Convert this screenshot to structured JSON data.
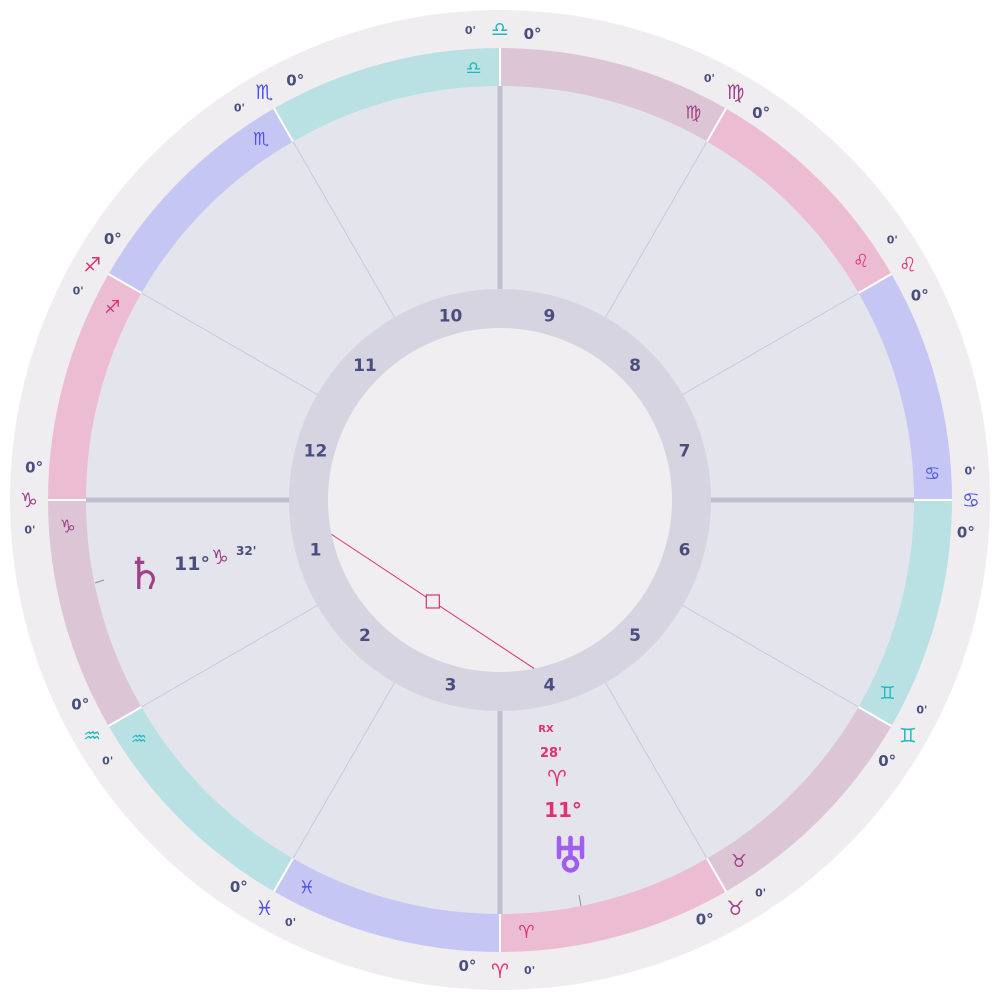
{
  "colors": {
    "outer_ring": "#efedf0",
    "house_bg": "#e4e4ec",
    "inner_ring": "#d5d4e0",
    "center": "#f0eef1",
    "divider": "#c9c8d6",
    "angle_line": "#c0bfcf",
    "text": "#4a4e7e",
    "fire_band": "#ecbdd2",
    "earth_band": "#dcc6d6",
    "air_band": "#b9e1e3",
    "water_band": "#c5c6f3",
    "fire_glyph": "#e0306e",
    "earth_glyph": "#a0408a",
    "air_glyph": "#20b8c0",
    "water_glyph": "#4f52e8",
    "aspect_square": "#e0306e",
    "uranus": "#a15cf0",
    "saturn": "#a0408a"
  },
  "zodiac_band": [
    {
      "sign": "Aries",
      "glyph": "♈",
      "element": "fire"
    },
    {
      "sign": "Taurus",
      "glyph": "♉",
      "element": "earth"
    },
    {
      "sign": "Gemini",
      "glyph": "♊",
      "element": "air"
    },
    {
      "sign": "Cancer",
      "glyph": "♋",
      "element": "water"
    },
    {
      "sign": "Leo",
      "glyph": "♌",
      "element": "fire"
    },
    {
      "sign": "Virgo",
      "glyph": "♍",
      "element": "earth"
    },
    {
      "sign": "Libra",
      "glyph": "♎",
      "element": "air"
    },
    {
      "sign": "Scorpio",
      "glyph": "♏",
      "element": "water"
    },
    {
      "sign": "Sagittarius",
      "glyph": "♐",
      "element": "fire"
    },
    {
      "sign": "Capricorn",
      "glyph": "♑",
      "element": "earth"
    },
    {
      "sign": "Aquarius",
      "glyph": "♒",
      "element": "air"
    },
    {
      "sign": "Pisces",
      "glyph": "♓",
      "element": "water"
    }
  ],
  "cusps": [
    {
      "deg": "0°",
      "glyph": "♈",
      "min": "0'",
      "element": "fire"
    },
    {
      "deg": "0°",
      "glyph": "♉",
      "min": "0'",
      "element": "earth"
    },
    {
      "deg": "0°",
      "glyph": "♊",
      "min": "0'",
      "element": "air"
    },
    {
      "deg": "0°",
      "glyph": "♋",
      "min": "0'",
      "element": "water"
    },
    {
      "deg": "0°",
      "glyph": "♌",
      "min": "0'",
      "element": "fire"
    },
    {
      "deg": "0°",
      "glyph": "♍",
      "min": "0'",
      "element": "earth"
    },
    {
      "deg": "0°",
      "glyph": "♎",
      "min": "0'",
      "element": "air"
    },
    {
      "deg": "0°",
      "glyph": "♏",
      "min": "0'",
      "element": "water"
    },
    {
      "deg": "0°",
      "glyph": "♐",
      "min": "0'",
      "element": "fire"
    },
    {
      "deg": "0°",
      "glyph": "♑",
      "min": "0'",
      "element": "earth"
    },
    {
      "deg": "0°",
      "glyph": "♒",
      "min": "0'",
      "element": "air"
    },
    {
      "deg": "0°",
      "glyph": "♓",
      "min": "0'",
      "element": "water"
    }
  ],
  "houses": [
    "1",
    "2",
    "3",
    "4",
    "5",
    "6",
    "7",
    "8",
    "9",
    "10",
    "11",
    "12"
  ],
  "planets": {
    "saturn": {
      "glyph": "♄",
      "degree": "11°",
      "sign_glyph": "♑",
      "minutes": "32'",
      "sign": "Capricorn"
    },
    "uranus": {
      "glyph": "♅",
      "degree": "11°",
      "sign_glyph": "♈",
      "minutes": "28'",
      "retrograde": "RX",
      "sign": "Aries"
    }
  },
  "aspect": {
    "type": "square",
    "symbol": "□",
    "from": "saturn",
    "to": "uranus"
  }
}
